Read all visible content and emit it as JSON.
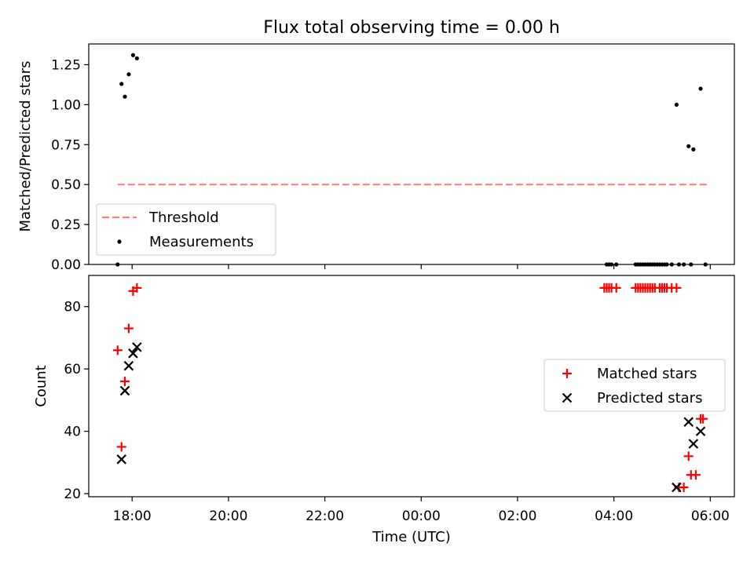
{
  "figure": {
    "title": "Flux total observing time = 0.00 h"
  },
  "chart_data": [
    {
      "type": "scatter",
      "ylabel": "Matched/Predicted stars",
      "xlabel": "",
      "x_unit": "hours relative to 00:00 UTC",
      "xlim": [
        -6.9,
        6.5
      ],
      "ylim": [
        0,
        1.38
      ],
      "yticks": [
        "0.00",
        "0.25",
        "0.50",
        "0.75",
        "1.00",
        "1.25"
      ],
      "show_xticklabels": false,
      "legend": {
        "position": "lower-left",
        "entries": [
          "Threshold",
          "Measurements"
        ]
      },
      "threshold": {
        "name": "Threshold",
        "value": 0.5,
        "x_range": [
          -6.3,
          5.95
        ],
        "color": "#ff7f7f"
      },
      "series": [
        {
          "name": "Measurements",
          "color": "#000000",
          "points": [
            [
              -6.3,
              0.0
            ],
            [
              -6.22,
              1.13
            ],
            [
              -6.15,
              1.05
            ],
            [
              -6.07,
              1.19
            ],
            [
              -5.98,
              1.31
            ],
            [
              -5.9,
              1.29
            ],
            [
              3.85,
              0.0
            ],
            [
              3.9,
              0.0
            ],
            [
              3.95,
              0.0
            ],
            [
              4.05,
              0.0
            ],
            [
              4.45,
              0.0
            ],
            [
              4.5,
              0.0
            ],
            [
              4.55,
              0.0
            ],
            [
              4.6,
              0.0
            ],
            [
              4.65,
              0.0
            ],
            [
              4.7,
              0.0
            ],
            [
              4.75,
              0.0
            ],
            [
              4.8,
              0.0
            ],
            [
              4.85,
              0.0
            ],
            [
              4.9,
              0.0
            ],
            [
              4.95,
              0.0
            ],
            [
              5.0,
              0.0
            ],
            [
              5.05,
              0.0
            ],
            [
              5.1,
              0.0
            ],
            [
              5.2,
              0.0
            ],
            [
              5.3,
              1.0
            ],
            [
              5.35,
              0.0
            ],
            [
              5.45,
              0.0
            ],
            [
              5.55,
              0.74
            ],
            [
              5.6,
              0.0
            ],
            [
              5.65,
              0.72
            ],
            [
              5.8,
              1.1
            ],
            [
              5.9,
              0.0
            ]
          ]
        }
      ]
    },
    {
      "type": "scatter",
      "xlabel": "Time (UTC)",
      "ylabel": "Count",
      "x_unit": "hours relative to 00:00 UTC",
      "xlim": [
        -6.9,
        6.5
      ],
      "ylim": [
        19,
        90
      ],
      "xticks": [
        {
          "value": -6,
          "label": "18:00"
        },
        {
          "value": -4,
          "label": "20:00"
        },
        {
          "value": -2,
          "label": "22:00"
        },
        {
          "value": 0,
          "label": "00:00"
        },
        {
          "value": 2,
          "label": "02:00"
        },
        {
          "value": 4,
          "label": "04:00"
        },
        {
          "value": 6,
          "label": "06:00"
        }
      ],
      "yticks": [
        "20",
        "40",
        "60",
        "80"
      ],
      "legend": {
        "position": "center-right",
        "entries": [
          "Matched stars",
          "Predicted stars"
        ]
      },
      "series": [
        {
          "name": "Matched stars",
          "marker": "plus",
          "color": "#ff0000",
          "points": [
            [
              -6.3,
              66
            ],
            [
              -6.22,
              35
            ],
            [
              -6.15,
              56
            ],
            [
              -6.07,
              73
            ],
            [
              -5.98,
              85
            ],
            [
              -5.9,
              86
            ],
            [
              3.8,
              86
            ],
            [
              3.85,
              86
            ],
            [
              3.9,
              86
            ],
            [
              3.95,
              86
            ],
            [
              4.05,
              86
            ],
            [
              4.45,
              86
            ],
            [
              4.5,
              86
            ],
            [
              4.55,
              86
            ],
            [
              4.6,
              86
            ],
            [
              4.65,
              86
            ],
            [
              4.7,
              86
            ],
            [
              4.75,
              86
            ],
            [
              4.8,
              86
            ],
            [
              4.85,
              86
            ],
            [
              4.95,
              86
            ],
            [
              5.0,
              86
            ],
            [
              5.05,
              86
            ],
            [
              5.1,
              86
            ],
            [
              5.2,
              86
            ],
            [
              5.3,
              86
            ],
            [
              5.35,
              22
            ],
            [
              5.45,
              22
            ],
            [
              5.55,
              32
            ],
            [
              5.6,
              26
            ],
            [
              5.7,
              26
            ],
            [
              5.8,
              44
            ],
            [
              5.85,
              44
            ]
          ]
        },
        {
          "name": "Predicted stars",
          "marker": "x",
          "color": "#000000",
          "points": [
            [
              -6.22,
              31
            ],
            [
              -6.15,
              53
            ],
            [
              -6.07,
              61
            ],
            [
              -5.98,
              65
            ],
            [
              -5.9,
              67
            ],
            [
              5.3,
              22
            ],
            [
              5.55,
              43
            ],
            [
              5.65,
              36
            ],
            [
              5.8,
              40
            ]
          ]
        }
      ]
    }
  ]
}
